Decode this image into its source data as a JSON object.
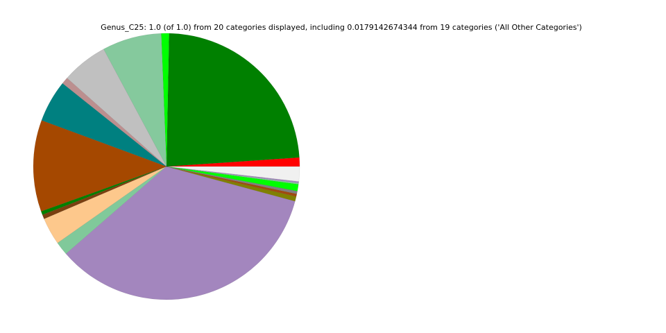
{
  "chart_data": {
    "type": "pie",
    "title": "Genus_C25: 1.0 (of 1.0) from 20 categories displayed, including 0.0179142674344 from 19 categories ('All Other Categories')",
    "start_angle_deg": 0,
    "direction": "counterclockwise",
    "slices": [
      {
        "value": 0.0108,
        "color": "#ff0000"
      },
      {
        "value": 0.236,
        "color": "#008000"
      },
      {
        "value": 0.0094,
        "color": "#00ff00"
      },
      {
        "value": 0.072,
        "color": "#85c99d"
      },
      {
        "value": 0.056,
        "color": "#c0c0c0"
      },
      {
        "value": 0.0083,
        "color": "#bc8f8f"
      },
      {
        "value": 0.051,
        "color": "#008080"
      },
      {
        "value": 0.111,
        "color": "#a54800"
      },
      {
        "value": 0.0044,
        "color": "#008000"
      },
      {
        "value": 0.0053,
        "color": "#7a4010"
      },
      {
        "value": 0.033,
        "color": "#fdc88c"
      },
      {
        "value": 0.0164,
        "color": "#80c99a"
      },
      {
        "value": 0.344,
        "color": "#a386be"
      },
      {
        "value": 0.0058,
        "color": "#808000"
      },
      {
        "value": 0.0033,
        "color": "#a04a10"
      },
      {
        "value": 0.0033,
        "color": "#808080"
      },
      {
        "value": 0.0083,
        "color": "#00ff00"
      },
      {
        "value": 0.0017,
        "color": "#85c99d"
      },
      {
        "value": 0.0017,
        "color": "#a386be"
      },
      {
        "value": 0.0179142674344,
        "color": "#f0f0f0"
      }
    ]
  }
}
